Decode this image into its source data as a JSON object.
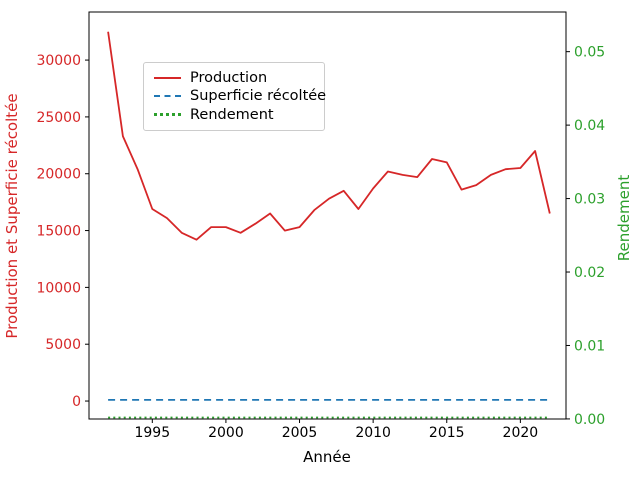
{
  "chart_data": {
    "type": "line",
    "title": "",
    "xlabel": "Année",
    "ylabel_left": "Production et Superficie récoltée",
    "ylabel_right": "Rendement",
    "x_tick_labels": [
      "1995",
      "2000",
      "2005",
      "2010",
      "2015",
      "2020"
    ],
    "x_tick_values": [
      1995,
      2000,
      2005,
      2010,
      2015,
      2020
    ],
    "y_left_tick_labels": [
      "0",
      "5000",
      "10000",
      "15000",
      "20000",
      "25000",
      "30000"
    ],
    "y_left_tick_values": [
      0,
      5000,
      10000,
      15000,
      20000,
      25000,
      30000
    ],
    "y_right_tick_labels": [
      "0.00",
      "0.01",
      "0.02",
      "0.03",
      "0.04",
      "0.05"
    ],
    "y_right_tick_values": [
      0,
      0.01,
      0.02,
      0.03,
      0.04,
      0.05
    ],
    "xlim": [
      1990.7,
      2023.1
    ],
    "ylim_left": [
      -1580,
      34230
    ],
    "ylim_right": [
      -1e-05,
      0.0554
    ],
    "grid": false,
    "legend_position": "upper left inside",
    "colors": {
      "left_axis_text": "#d62728",
      "right_axis_text": "#2ca02c",
      "x_axis_text": "#000000",
      "spine": "#000000",
      "production": "#d62728",
      "superficie": "#1f77b4",
      "rendement": "#2ca02c"
    },
    "legend": {
      "entries": [
        {
          "label": "Production",
          "color": "#d62728",
          "line_style": "solid"
        },
        {
          "label": "Superficie récoltée",
          "color": "#1f77b4",
          "line_style": "dashed"
        },
        {
          "label": "Rendement",
          "color": "#2ca02c",
          "line_style": "dotted"
        }
      ]
    },
    "years": [
      1992,
      1993,
      1994,
      1995,
      1996,
      1997,
      1998,
      1999,
      2000,
      2001,
      2002,
      2003,
      2004,
      2005,
      2006,
      2007,
      2008,
      2009,
      2010,
      2011,
      2012,
      2013,
      2014,
      2015,
      2016,
      2017,
      2018,
      2019,
      2020,
      2021,
      2022
    ],
    "series": [
      {
        "name": "Production",
        "axis": "left",
        "color": "#d62728",
        "line_style": "solid",
        "values": [
          32500,
          23300,
          20400,
          16900,
          16100,
          14800,
          14200,
          15300,
          15300,
          14800,
          15600,
          16500,
          15000,
          15300,
          16800,
          17800,
          18500,
          16900,
          18700,
          20200,
          19900,
          19700,
          21300,
          21000,
          18600,
          19000,
          19900,
          20400,
          20500,
          22000,
          16500
        ]
      },
      {
        "name": "Superficie récoltée",
        "axis": "left",
        "color": "#1f77b4",
        "line_style": "dashed",
        "values": [
          100,
          100,
          100,
          100,
          100,
          100,
          100,
          100,
          100,
          100,
          100,
          100,
          100,
          100,
          100,
          100,
          100,
          100,
          100,
          100,
          100,
          100,
          100,
          100,
          100,
          100,
          100,
          100,
          100,
          100,
          100
        ]
      },
      {
        "name": "Rendement",
        "axis": "right",
        "color": "#2ca02c",
        "line_style": "dotted",
        "values": [
          0.0002,
          0.0002,
          0.0002,
          0.0002,
          0.0002,
          0.0002,
          0.0002,
          0.0002,
          0.0002,
          0.0002,
          0.0002,
          0.0002,
          0.0002,
          0.0002,
          0.0002,
          0.0002,
          0.0002,
          0.0002,
          0.0002,
          0.0002,
          0.0002,
          0.0002,
          0.0002,
          0.0002,
          0.0002,
          0.0002,
          0.0002,
          0.0002,
          0.0002,
          0.0002,
          0.0002
        ]
      }
    ]
  }
}
